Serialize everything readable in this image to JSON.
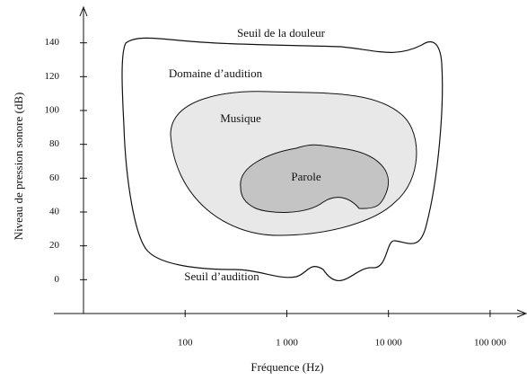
{
  "chart_data": {
    "type": "log-region",
    "xlabel": "Fréquence (Hz)",
    "ylabel": "Niveau de pression sonore (dB)",
    "log_x": true,
    "xlim": [
      10,
      200000
    ],
    "ylim": [
      -20,
      160
    ],
    "xticks": [
      100,
      {
        "value": 1000,
        "label": "1 000"
      },
      {
        "value": 10000,
        "label": "10 000"
      },
      {
        "value": 100000,
        "label": "100 000"
      }
    ],
    "yticks": [
      0,
      20,
      40,
      60,
      80,
      100,
      120,
      140
    ],
    "annotations": [
      "Seuil de la douleur",
      "Domaine d’audition",
      "Musique",
      "Parole",
      "Seuil d’audition"
    ]
  }
}
